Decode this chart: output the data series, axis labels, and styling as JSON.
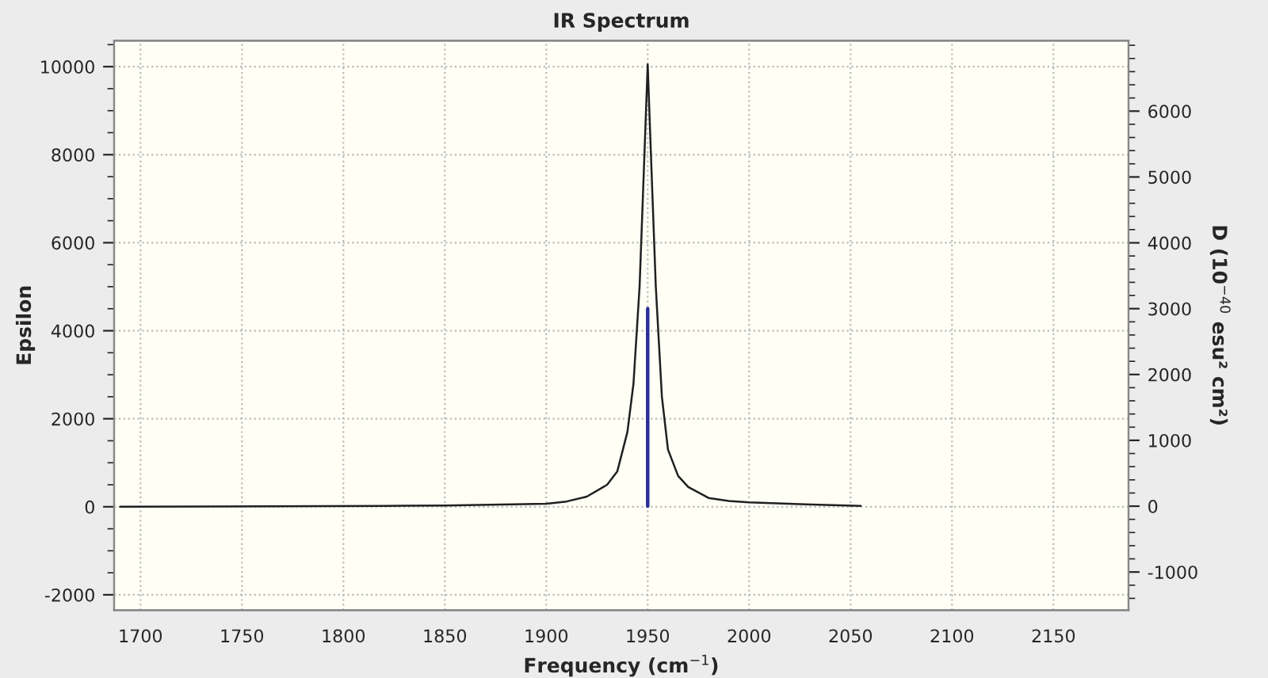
{
  "chart_data": {
    "type": "line",
    "title": "IR Spectrum",
    "xlabel": "Frequency (cm$^{−1}$)",
    "ylabel": "Epsilon",
    "y2label": "D (10$^{−40}$ esu² cm²)",
    "series": [
      {
        "color": "#202020",
        "x": [
          1690,
          1820,
          1850,
          1900,
          1910,
          1920,
          1930,
          1935,
          1940,
          1943,
          1946,
          1948,
          1950,
          1952,
          1954,
          1957,
          1960,
          1965,
          1970,
          1980,
          1990,
          2000,
          2025,
          2055
        ],
        "values": [
          0,
          20,
          30,
          70,
          120,
          230,
          500,
          800,
          1700,
          2800,
          5000,
          7500,
          10050,
          7500,
          5000,
          2500,
          1300,
          700,
          450,
          200,
          130,
          100,
          60,
          20
        ]
      },
      {
        "color": "#2b2f9a",
        "axis": "y2",
        "x": [
          1950,
          1950
        ],
        "values": [
          0,
          3000
        ]
      }
    ],
    "xlim": [
      1687,
      2187
    ],
    "xticks": [
      1700,
      1750,
      1800,
      1850,
      1900,
      1950,
      2000,
      2050,
      2100,
      2150
    ],
    "ylim": [
      -2350,
      10590
    ],
    "yticks": [
      -2000,
      0,
      2000,
      4000,
      6000,
      8000,
      10000
    ],
    "y2lim": [
      -1580,
      7070
    ],
    "y2ticks": [
      -1000,
      0,
      1000,
      2000,
      3000,
      4000,
      5000,
      6000
    ],
    "grid": true,
    "line_style": "solid",
    "marker": "none"
  }
}
